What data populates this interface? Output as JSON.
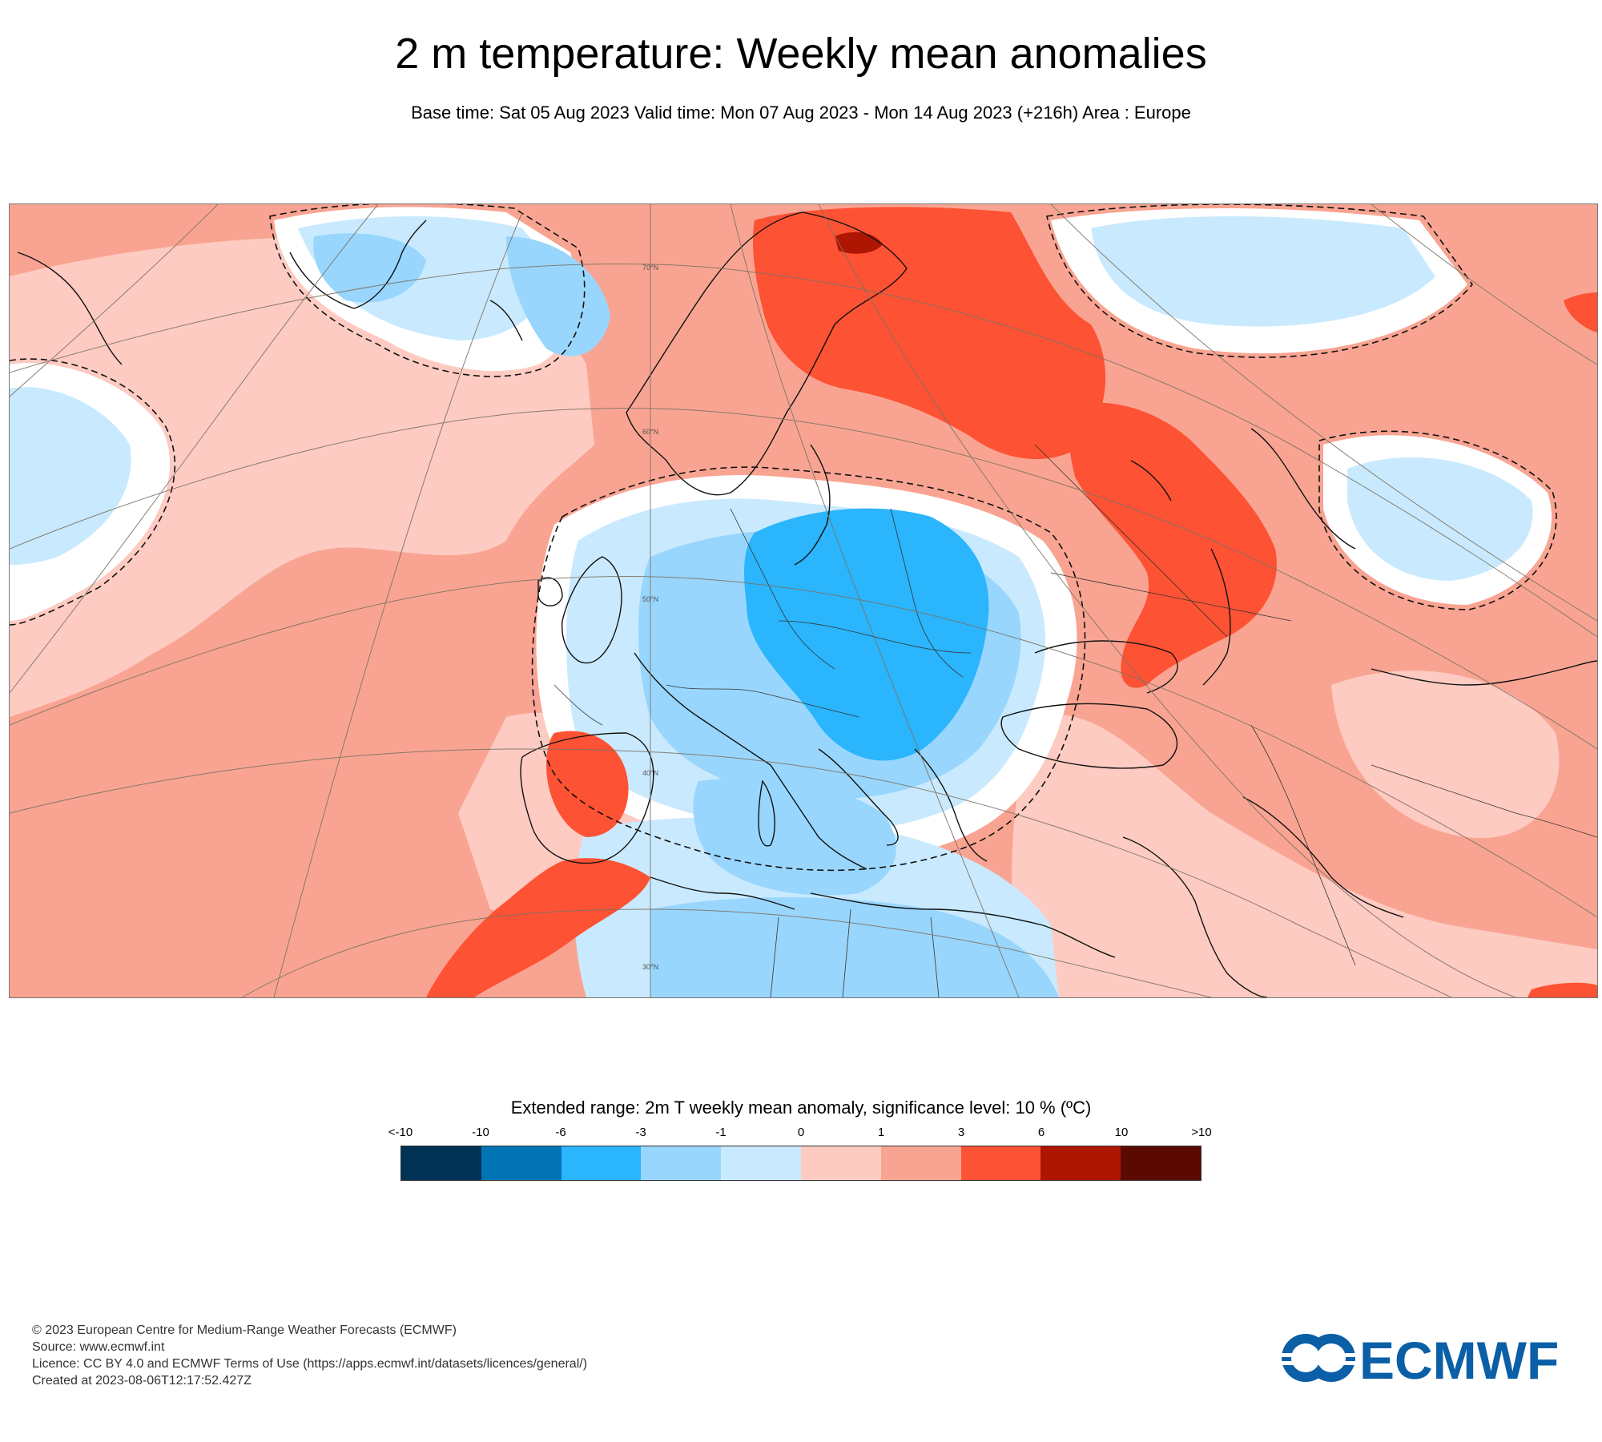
{
  "title": "2 m temperature: Weekly mean anomalies",
  "subtitle": "Base time: Sat 05 Aug 2023 Valid time: Mon 07 Aug 2023 - Mon 14 Aug 2023 (+216h) Area : Europe",
  "map": {
    "latitude_labels": [
      "70°N",
      "60°N",
      "50°N",
      "40°N",
      "30°N"
    ],
    "colors": {
      "sea": "#f9a492",
      "strong_warm": "#fd5233",
      "very_warm": "#ae1502",
      "weak_warm": "#fecbc2",
      "neutral": "#ffffff",
      "weak_cold": "#c9eafe",
      "cold": "#99d6fd",
      "strong_cold": "#2ab5fd"
    }
  },
  "legend": {
    "title": "Extended range: 2m T weekly mean anomaly, significance level: 10 % (ºC)",
    "ticks": [
      "<-10",
      "-10",
      "-6",
      "-3",
      "-1",
      "0",
      "1",
      "3",
      "6",
      "10",
      ">10"
    ],
    "colors": [
      "#003355",
      "#0274b4",
      "#2ab5fd",
      "#99d6fd",
      "#c9eafe",
      "#fecbc2",
      "#f9a492",
      "#fd5233",
      "#ae1502",
      "#5a0a00"
    ]
  },
  "footer": {
    "lines": [
      "© 2023 European Centre for Medium-Range Weather Forecasts (ECMWF)",
      "Source: www.ecmwf.int",
      "Licence: CC BY 4.0 and ECMWF Terms of Use (https://apps.ecmwf.int/datasets/licences/general/)",
      "Created at 2023-08-06T12:17:52.427Z"
    ]
  },
  "logo": {
    "text": "ECMWF",
    "color": "#0a5fa6"
  }
}
